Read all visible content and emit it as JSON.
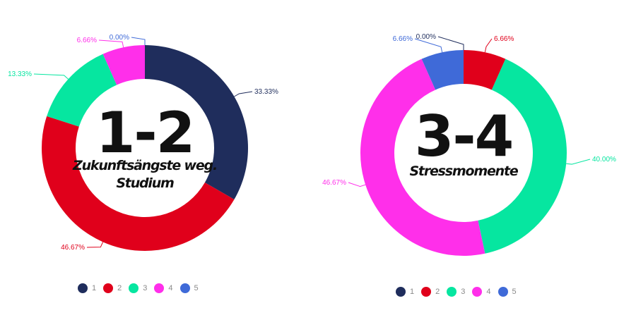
{
  "colors": {
    "1": "#1f2d5c",
    "2": "#e0001b",
    "3": "#06e6a0",
    "4": "#ff2fea",
    "5": "#3f6ad8"
  },
  "chart_data": [
    {
      "type": "pie",
      "donut": true,
      "center_value": "1-2",
      "center_label": "Zukunftsängste weg. Studium",
      "categories": [
        "1",
        "2",
        "3",
        "4",
        "5"
      ],
      "values": [
        33.33,
        46.67,
        13.33,
        6.66,
        0.0
      ],
      "data_labels": [
        "33.33%",
        "46.67%",
        "13.33%",
        "6.66%",
        "0.00%"
      ],
      "legend": [
        "1",
        "2",
        "3",
        "4",
        "5"
      ],
      "legend_position": "bottom"
    },
    {
      "type": "pie",
      "donut": true,
      "center_value": "3-4",
      "center_label": "Stressmomente",
      "categories": [
        "1",
        "2",
        "3",
        "4",
        "5"
      ],
      "values": [
        0.0,
        6.66,
        40.0,
        46.67,
        6.66
      ],
      "data_labels": [
        "0.00%",
        "6.66%",
        "40.00%",
        "46.67%",
        "6.66%"
      ],
      "legend": [
        "1",
        "2",
        "3",
        "4",
        "5"
      ],
      "legend_position": "bottom"
    }
  ]
}
